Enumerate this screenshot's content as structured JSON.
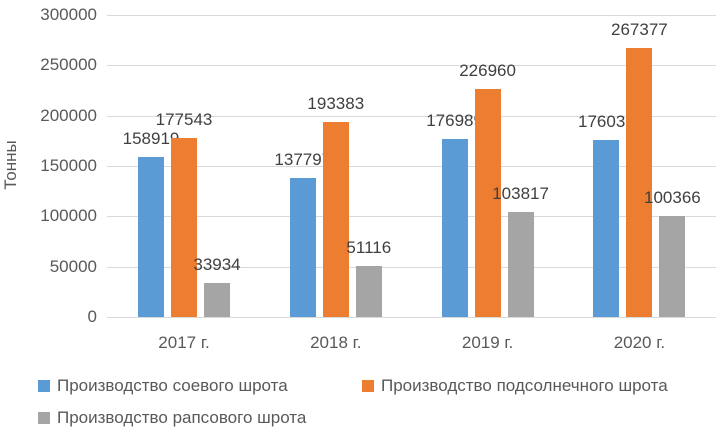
{
  "chart_data": {
    "type": "bar",
    "title": "",
    "xlabel": "",
    "ylabel": "Тонны",
    "categories": [
      "2017 г.",
      "2018 г.",
      "2019 г.",
      "2020 г."
    ],
    "series": [
      {
        "name": "Производство соевого шрота",
        "color": "#5B9BD5",
        "values": [
          158919,
          137797,
          176989,
          176035
        ]
      },
      {
        "name": "Производство подсолнечного шрота",
        "color": "#ED7D31",
        "values": [
          177543,
          193383,
          226960,
          267377
        ]
      },
      {
        "name": "Производство рапсового шрота",
        "color": "#A5A5A5",
        "values": [
          33934,
          51116,
          103817,
          100366
        ]
      }
    ],
    "ylim": [
      0,
      300000
    ],
    "yticks": [
      0,
      50000,
      100000,
      150000,
      200000,
      250000,
      300000
    ],
    "grid": true,
    "data_labels": true,
    "legend_position": "bottom"
  },
  "colors": {
    "gridline": "#d9d9d9",
    "axis_text": "#595959",
    "data_label_text": "#404040",
    "background": "#ffffff"
  }
}
